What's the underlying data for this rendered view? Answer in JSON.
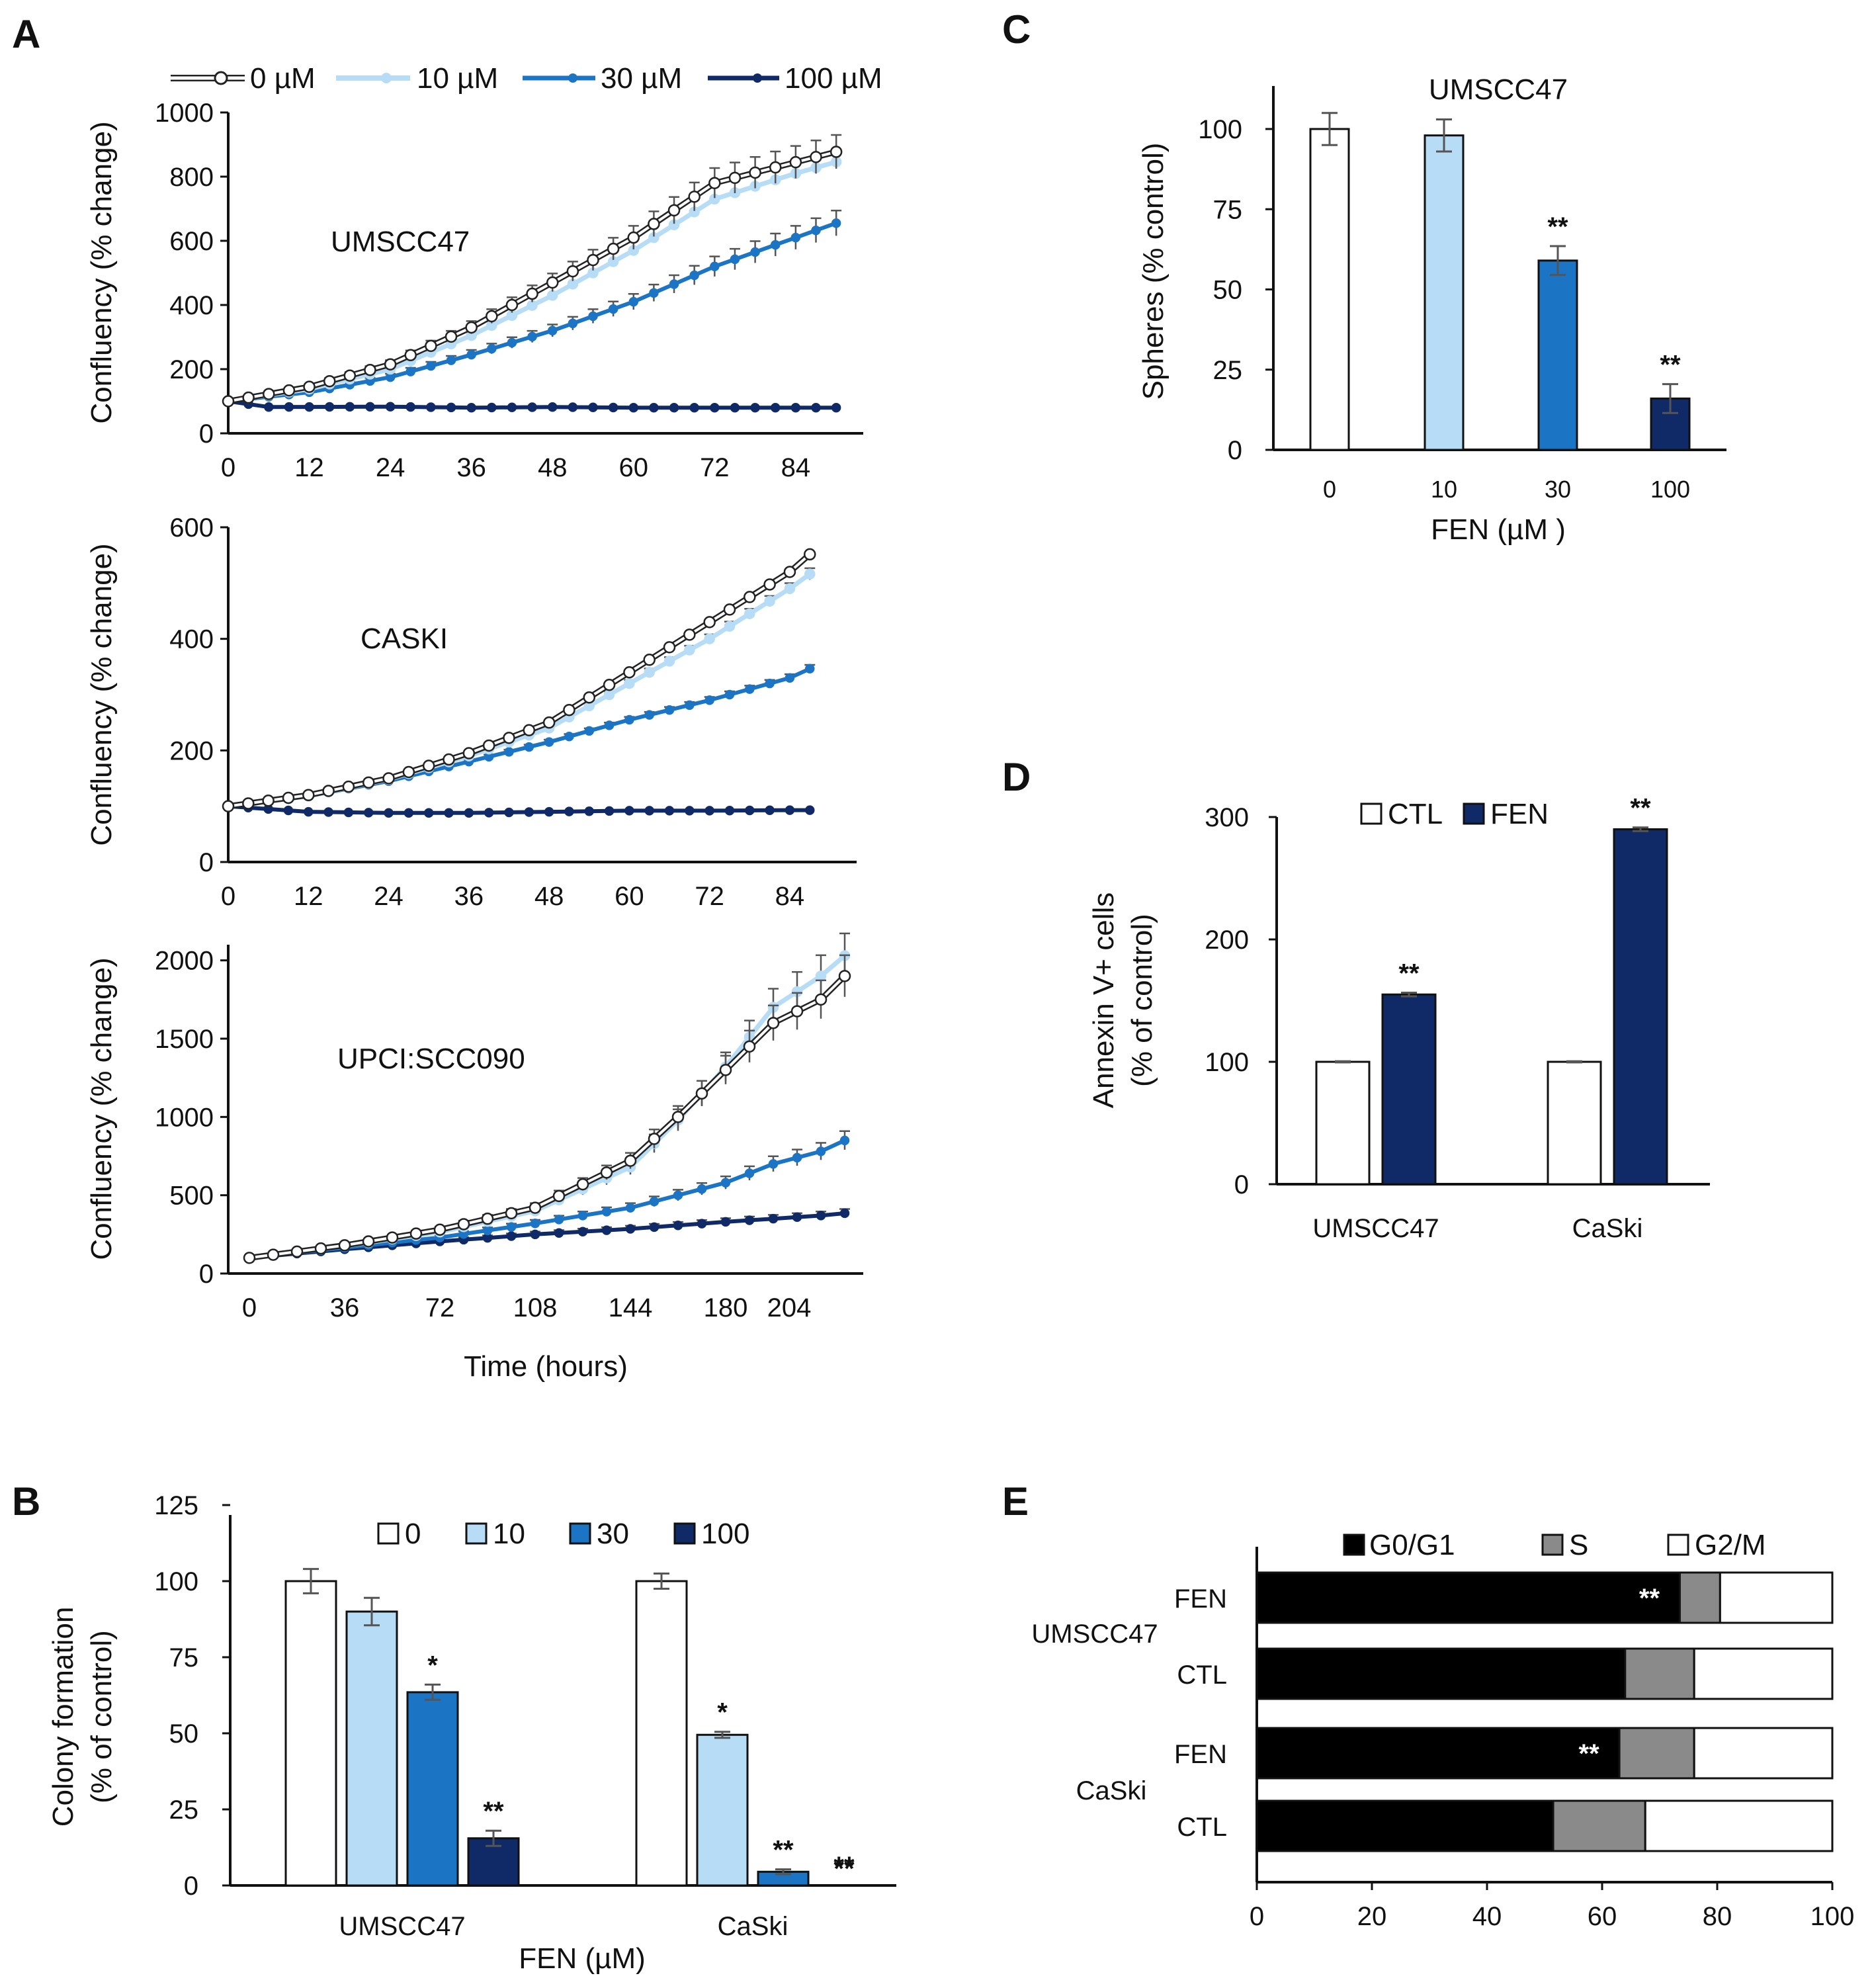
{
  "figure": {
    "panel_labels": [
      "A",
      "B",
      "C",
      "D",
      "E"
    ]
  },
  "colors": {
    "c0": "#ffffff",
    "c10": "#b7dcf5",
    "c30": "#1c75c4",
    "c100": "#0f2a66",
    "black": "#000000",
    "gray": "#8a8a8a",
    "err": "#555555"
  },
  "chart_data": [
    {
      "id": "A1",
      "type": "line",
      "title": "UMSCC47",
      "xlabel": "",
      "ylabel": "Confluency (% change)",
      "xlim": [
        0,
        94
      ],
      "ylim": [
        0,
        1000
      ],
      "xticks": [
        0,
        12,
        24,
        36,
        48,
        60,
        72,
        84
      ],
      "yticks": [
        0,
        200,
        400,
        600,
        800,
        1000
      ],
      "legend": [
        "0 µM",
        "10 µM",
        "30 µM",
        "100 µM"
      ],
      "anchors": {
        "0 µM": [
          [
            0,
            100
          ],
          [
            12,
            145
          ],
          [
            24,
            215
          ],
          [
            36,
            330
          ],
          [
            48,
            470
          ],
          [
            60,
            610
          ],
          [
            72,
            780
          ],
          [
            84,
            845
          ],
          [
            92,
            888
          ]
        ],
        "10 µM": [
          [
            0,
            100
          ],
          [
            12,
            138
          ],
          [
            24,
            200
          ],
          [
            36,
            305
          ],
          [
            48,
            430
          ],
          [
            60,
            570
          ],
          [
            72,
            730
          ],
          [
            84,
            810
          ],
          [
            92,
            858
          ]
        ],
        "30 µM": [
          [
            0,
            100
          ],
          [
            12,
            128
          ],
          [
            24,
            175
          ],
          [
            36,
            245
          ],
          [
            48,
            320
          ],
          [
            60,
            410
          ],
          [
            72,
            520
          ],
          [
            84,
            610
          ],
          [
            92,
            670
          ]
        ],
        "100 µM": [
          [
            0,
            100
          ],
          [
            6,
            82
          ],
          [
            24,
            83
          ],
          [
            36,
            80
          ],
          [
            48,
            82
          ],
          [
            60,
            80
          ],
          [
            72,
            80
          ],
          [
            84,
            80
          ],
          [
            92,
            80
          ]
        ]
      },
      "error_series": [
        "0 µM",
        "30 µM"
      ],
      "err_frac": 0.06
    },
    {
      "id": "A2",
      "type": "line",
      "title": "CASKI",
      "xlabel": "",
      "ylabel": "Confluency (% change)",
      "xlim": [
        0,
        94
      ],
      "ylim": [
        0,
        600
      ],
      "xticks": [
        0,
        12,
        24,
        36,
        48,
        60,
        72,
        84
      ],
      "yticks": [
        0,
        200,
        400,
        600
      ],
      "anchors": {
        "0 µM": [
          [
            0,
            100
          ],
          [
            12,
            120
          ],
          [
            24,
            150
          ],
          [
            36,
            195
          ],
          [
            48,
            250
          ],
          [
            60,
            340
          ],
          [
            72,
            430
          ],
          [
            84,
            520
          ],
          [
            88,
            562
          ]
        ],
        "10 µM": [
          [
            0,
            100
          ],
          [
            12,
            118
          ],
          [
            24,
            148
          ],
          [
            36,
            190
          ],
          [
            48,
            240
          ],
          [
            60,
            320
          ],
          [
            72,
            400
          ],
          [
            84,
            490
          ],
          [
            88,
            525
          ]
        ],
        "30 µM": [
          [
            0,
            100
          ],
          [
            12,
            118
          ],
          [
            24,
            145
          ],
          [
            36,
            180
          ],
          [
            48,
            215
          ],
          [
            60,
            255
          ],
          [
            72,
            290
          ],
          [
            84,
            330
          ],
          [
            88,
            352
          ]
        ],
        "100 µM": [
          [
            0,
            100
          ],
          [
            12,
            90
          ],
          [
            24,
            88
          ],
          [
            36,
            88
          ],
          [
            48,
            90
          ],
          [
            60,
            92
          ],
          [
            72,
            92
          ],
          [
            84,
            93
          ],
          [
            88,
            93
          ]
        ]
      },
      "error_series": [
        "10 µM",
        "30 µM"
      ],
      "err_frac": 0.02
    },
    {
      "id": "A3",
      "type": "line",
      "title": "UPCI:SCC090",
      "xlabel": "Time (hours)",
      "ylabel": "Confluency (% change)",
      "xlim": [
        -8,
        232
      ],
      "ylim": [
        0,
        2100
      ],
      "xticks": [
        0,
        36,
        72,
        108,
        144,
        180,
        204
      ],
      "yticks": [
        0,
        500,
        1000,
        1500,
        2000
      ],
      "anchors": {
        "0 µM": [
          [
            0,
            100
          ],
          [
            36,
            180
          ],
          [
            72,
            280
          ],
          [
            108,
            420
          ],
          [
            144,
            720
          ],
          [
            162,
            1000
          ],
          [
            180,
            1300
          ],
          [
            198,
            1600
          ],
          [
            216,
            1750
          ],
          [
            225,
            1900
          ]
        ],
        "10 µM": [
          [
            0,
            100
          ],
          [
            36,
            175
          ],
          [
            72,
            265
          ],
          [
            108,
            400
          ],
          [
            144,
            680
          ],
          [
            162,
            980
          ],
          [
            180,
            1320
          ],
          [
            198,
            1700
          ],
          [
            216,
            1900
          ],
          [
            225,
            2030
          ]
        ],
        "30 µM": [
          [
            0,
            100
          ],
          [
            36,
            165
          ],
          [
            72,
            230
          ],
          [
            108,
            320
          ],
          [
            144,
            420
          ],
          [
            180,
            580
          ],
          [
            198,
            700
          ],
          [
            216,
            780
          ],
          [
            225,
            850
          ]
        ],
        "100 µM": [
          [
            0,
            100
          ],
          [
            36,
            155
          ],
          [
            72,
            205
          ],
          [
            108,
            250
          ],
          [
            144,
            285
          ],
          [
            180,
            330
          ],
          [
            216,
            370
          ],
          [
            225,
            385
          ]
        ]
      },
      "error_series": [
        "0 µM",
        "10 µM",
        "30 µM",
        "100 µM"
      ],
      "err_frac": 0.07
    },
    {
      "id": "B",
      "type": "bar",
      "title": "",
      "xlabel": "FEN (µM)",
      "ylabel": "Colony formation (% of control)",
      "ylim": [
        0,
        125
      ],
      "yticks": [
        0,
        25,
        50,
        75,
        100,
        125
      ],
      "legend": [
        "0",
        "10",
        "30",
        "100"
      ],
      "categories": [
        "UMSCC47",
        "CaSki"
      ],
      "series": [
        {
          "name": "0",
          "values": [
            100,
            100
          ],
          "err": [
            4,
            2.5
          ],
          "sig": [
            "",
            ""
          ]
        },
        {
          "name": "10",
          "values": [
            90,
            49.5
          ],
          "err": [
            4.5,
            1
          ],
          "sig": [
            "",
            "*"
          ]
        },
        {
          "name": "30",
          "values": [
            63.5,
            4.5
          ],
          "err": [
            2.5,
            0.8
          ],
          "sig": [
            "*",
            "**"
          ]
        },
        {
          "name": "100",
          "values": [
            15.5,
            0
          ],
          "err": [
            2.5,
            0
          ],
          "sig": [
            "**",
            "**"
          ]
        }
      ]
    },
    {
      "id": "C",
      "type": "bar",
      "title": "UMSCC47",
      "xlabel": "FEN (µM )",
      "ylabel": "Spheres (% control)",
      "ylim": [
        0,
        110
      ],
      "yticks": [
        0,
        25,
        50,
        75,
        100
      ],
      "categories": [
        "0",
        "10",
        "30",
        "100"
      ],
      "values": [
        100,
        98,
        59,
        16
      ],
      "err": [
        5,
        5,
        4.5,
        4.5
      ],
      "sig": [
        "",
        "",
        "**",
        "**"
      ]
    },
    {
      "id": "D",
      "type": "bar",
      "title": "",
      "xlabel": "",
      "ylabel": "Annexin V+ cells (% of control)",
      "ylim": [
        0,
        300
      ],
      "yticks": [
        0,
        100,
        200,
        300
      ],
      "legend": [
        "CTL",
        "FEN"
      ],
      "categories": [
        "UMSCC47",
        "CaSki"
      ],
      "series": [
        {
          "name": "CTL",
          "values": [
            100,
            100
          ],
          "err": [
            0.5,
            0.5
          ],
          "sig": [
            "",
            ""
          ]
        },
        {
          "name": "FEN",
          "values": [
            155,
            290
          ],
          "err": [
            1.5,
            1.5
          ],
          "sig": [
            "**",
            "**"
          ]
        }
      ]
    },
    {
      "id": "E",
      "type": "bar",
      "orientation": "horizontal-stacked",
      "title": "",
      "xlabel": "",
      "xlim": [
        0,
        100
      ],
      "xticks": [
        0,
        20,
        40,
        60,
        80,
        100
      ],
      "legend": [
        "G0/G1",
        "S",
        "G2/M"
      ],
      "groups": [
        "UMSCC47",
        "CaSki"
      ],
      "rows": [
        {
          "group": "UMSCC47",
          "label": "FEN",
          "G0/G1": 73.5,
          "S": 7,
          "G2/M": 19.5,
          "sig": "**"
        },
        {
          "group": "UMSCC47",
          "label": "CTL",
          "G0/G1": 64,
          "S": 12,
          "G2/M": 24,
          "sig": ""
        },
        {
          "group": "CaSki",
          "label": "FEN",
          "G0/G1": 63,
          "S": 13,
          "G2/M": 24,
          "sig": "**"
        },
        {
          "group": "CaSki",
          "label": "CTL",
          "G0/G1": 51.5,
          "S": 16,
          "G2/M": 32.5,
          "sig": ""
        }
      ]
    }
  ]
}
